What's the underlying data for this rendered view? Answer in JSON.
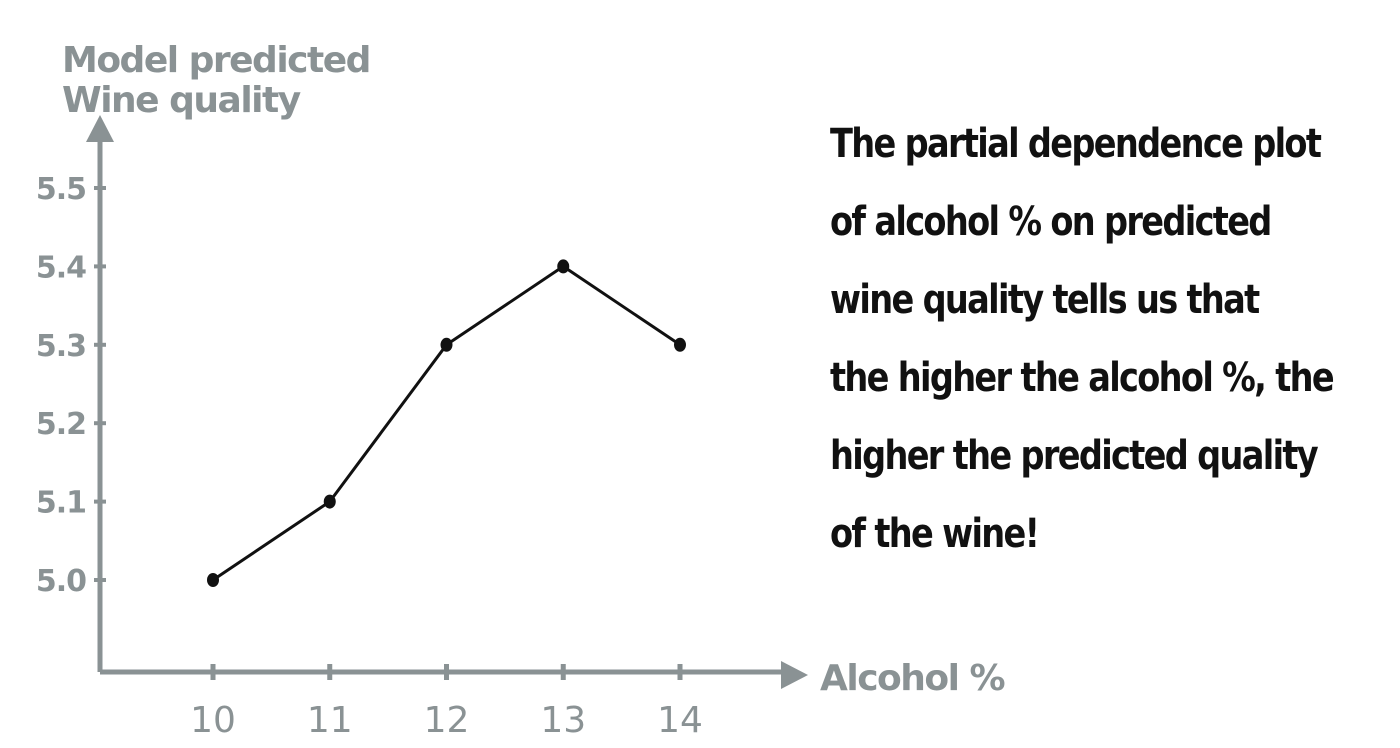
{
  "chart_data": {
    "type": "line",
    "ylabel": [
      "Model predicted",
      "Wine quality"
    ],
    "xlabel": "Alcohol %",
    "x": [
      10,
      11,
      12,
      13,
      14
    ],
    "y": [
      5.0,
      5.1,
      5.3,
      5.4,
      5.3
    ],
    "x_ticks": [
      "10",
      "11",
      "12",
      "13",
      "14"
    ],
    "y_ticks": [
      "5.0",
      "5.1",
      "5.2",
      "5.3",
      "5.4",
      "5.5"
    ],
    "ylim": [
      5.0,
      5.5
    ],
    "xlim": [
      10,
      14
    ],
    "grid": false,
    "legend": false,
    "colors": {
      "axis": "#8a9294",
      "line": "#111111",
      "text": "#111111"
    }
  },
  "annotation_lines": [
    "The partial dependence plot",
    "of alcohol % on predicted",
    "wine quality tells us that",
    "the higher the alcohol %, the",
    "higher the predicted quality",
    "of the wine!"
  ]
}
